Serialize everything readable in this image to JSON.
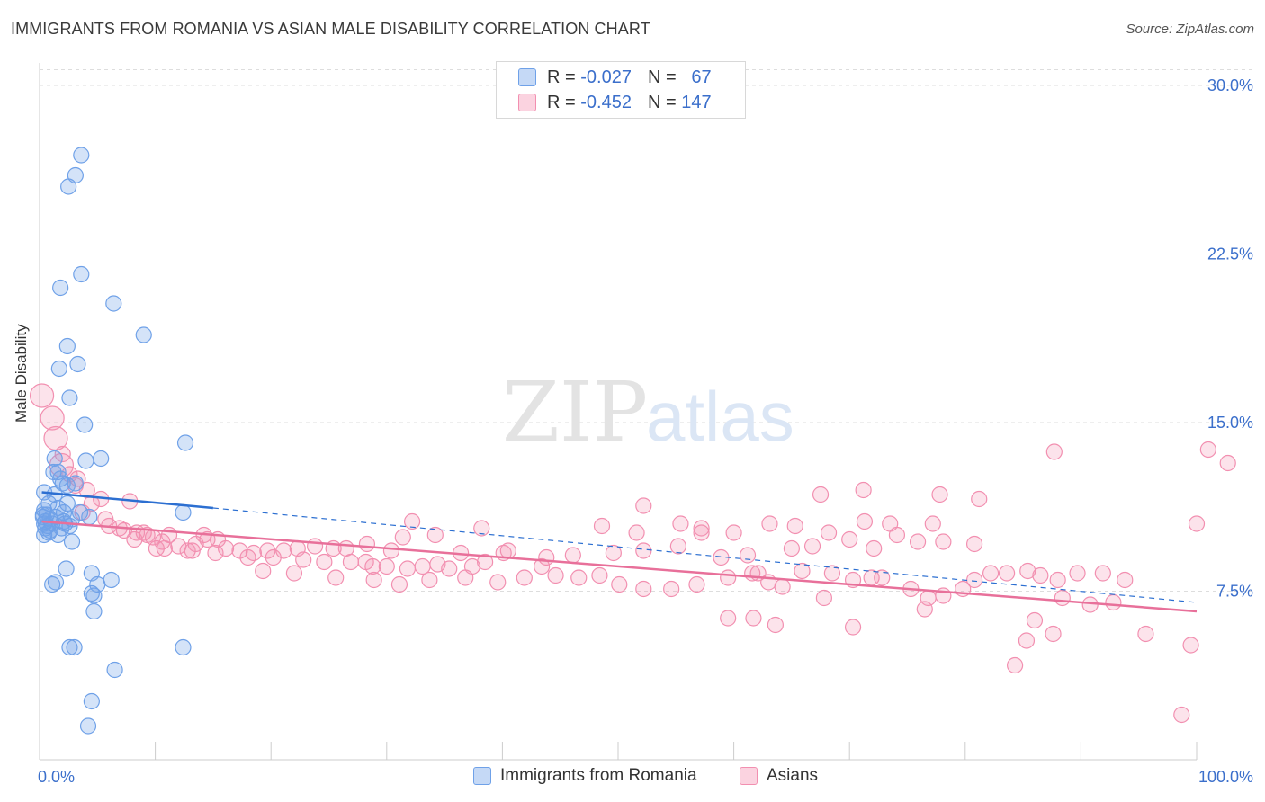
{
  "title": "IMMIGRANTS FROM ROMANIA VS ASIAN MALE DISABILITY CORRELATION CHART",
  "source": "Source: ZipAtlas.com",
  "watermark": {
    "zip": "ZIP",
    "atlas": "atlas"
  },
  "legend_top": [
    {
      "r_label": "R =",
      "r_value": "-0.027",
      "n_label": "N =",
      "n_value": "67"
    },
    {
      "r_label": "R =",
      "r_value": "-0.452",
      "n_label": "N =",
      "n_value": "147"
    }
  ],
  "legend_bottom": [
    "Immigrants from Romania",
    "Asians"
  ],
  "colors": {
    "blue": "#6fa1e8",
    "blue_line": "#2c6fd1",
    "pink": "#f28fb0",
    "pink_line": "#e8709a",
    "tick_text": "#3b6fcb"
  },
  "chart_data": {
    "type": "scatter",
    "ylabel": "Male Disability",
    "xlim": [
      0,
      100
    ],
    "ylim": [
      0,
      31
    ],
    "x_tick_labels": [
      "0.0%",
      "100.0%"
    ],
    "y_ticks": [
      {
        "value": 7.5,
        "label": "7.5%"
      },
      {
        "value": 15.0,
        "label": "15.0%"
      },
      {
        "value": 22.5,
        "label": "22.5%"
      },
      {
        "value": 30.0,
        "label": "30.0%"
      }
    ],
    "grid": "horizontal dashed",
    "series": [
      {
        "name": "Immigrants from Romania",
        "color": "#6fa1e8",
        "trend_solid": [
          [
            0.2,
            11.9
          ],
          [
            15,
            11.2
          ]
        ],
        "trend_dashed": [
          [
            15,
            11.2
          ],
          [
            100,
            7.0
          ]
        ],
        "points": [
          [
            3.6,
            26.9
          ],
          [
            3.1,
            26.0
          ],
          [
            2.5,
            25.5
          ],
          [
            3.6,
            21.6
          ],
          [
            1.8,
            21.0
          ],
          [
            6.4,
            20.3
          ],
          [
            9.0,
            18.9
          ],
          [
            2.4,
            18.4
          ],
          [
            3.3,
            17.6
          ],
          [
            1.7,
            17.4
          ],
          [
            2.6,
            16.1
          ],
          [
            3.9,
            14.9
          ],
          [
            12.6,
            14.1
          ],
          [
            1.3,
            13.4
          ],
          [
            4.0,
            13.3
          ],
          [
            5.3,
            13.4
          ],
          [
            1.2,
            12.8
          ],
          [
            1.6,
            12.8
          ],
          [
            1.8,
            12.5
          ],
          [
            2.0,
            12.3
          ],
          [
            2.4,
            12.2
          ],
          [
            3.1,
            12.3
          ],
          [
            0.4,
            11.9
          ],
          [
            1.3,
            11.8
          ],
          [
            2.4,
            11.4
          ],
          [
            0.8,
            11.4
          ],
          [
            0.4,
            11.1
          ],
          [
            1.6,
            11.2
          ],
          [
            0.6,
            10.9
          ],
          [
            2.1,
            11.0
          ],
          [
            3.5,
            11.0
          ],
          [
            12.4,
            11.0
          ],
          [
            0.3,
            10.8
          ],
          [
            0.5,
            10.6
          ],
          [
            0.9,
            10.7
          ],
          [
            1.4,
            10.8
          ],
          [
            2.1,
            10.6
          ],
          [
            2.8,
            10.7
          ],
          [
            4.3,
            10.8
          ],
          [
            0.4,
            10.5
          ],
          [
            0.7,
            10.4
          ],
          [
            1.1,
            10.5
          ],
          [
            2.2,
            10.5
          ],
          [
            2.6,
            10.4
          ],
          [
            0.5,
            10.3
          ],
          [
            0.9,
            10.2
          ],
          [
            0.4,
            10.0
          ],
          [
            0.8,
            10.1
          ],
          [
            1.6,
            10.0
          ],
          [
            2.8,
            9.7
          ],
          [
            2.3,
            8.5
          ],
          [
            4.5,
            8.3
          ],
          [
            6.2,
            8.0
          ],
          [
            1.4,
            7.9
          ],
          [
            1.1,
            7.8
          ],
          [
            5.0,
            7.8
          ],
          [
            4.5,
            7.4
          ],
          [
            4.7,
            7.3
          ],
          [
            4.7,
            6.6
          ],
          [
            2.6,
            5.0
          ],
          [
            3.0,
            5.0
          ],
          [
            12.4,
            5.0
          ],
          [
            6.5,
            4.0
          ],
          [
            4.5,
            2.6
          ],
          [
            4.2,
            1.5
          ],
          [
            0.3,
            10.9
          ],
          [
            1.9,
            10.3
          ]
        ]
      },
      {
        "name": "Asians",
        "color": "#f28fb0",
        "trend": [
          [
            0.2,
            10.6
          ],
          [
            100,
            6.6
          ]
        ],
        "points": [
          [
            0.2,
            16.2
          ],
          [
            1.1,
            15.2
          ],
          [
            1.4,
            14.3
          ],
          [
            2.0,
            13.6
          ],
          [
            1.9,
            13.1
          ],
          [
            2.6,
            12.7
          ],
          [
            3.3,
            12.5
          ],
          [
            3.1,
            12.2
          ],
          [
            4.1,
            12.0
          ],
          [
            5.3,
            11.6
          ],
          [
            4.5,
            11.4
          ],
          [
            7.8,
            11.5
          ],
          [
            3.7,
            11.0
          ],
          [
            5.7,
            10.7
          ],
          [
            6.0,
            10.4
          ],
          [
            6.9,
            10.3
          ],
          [
            7.3,
            10.2
          ],
          [
            8.4,
            10.1
          ],
          [
            9.0,
            10.1
          ],
          [
            9.3,
            10.0
          ],
          [
            11.2,
            10.0
          ],
          [
            8.2,
            9.8
          ],
          [
            9.8,
            9.9
          ],
          [
            10.6,
            9.7
          ],
          [
            12.0,
            9.5
          ],
          [
            13.5,
            9.6
          ],
          [
            14.5,
            9.8
          ],
          [
            15.4,
            9.8
          ],
          [
            14.2,
            10.0
          ],
          [
            10.1,
            9.4
          ],
          [
            10.8,
            9.4
          ],
          [
            12.8,
            9.3
          ],
          [
            13.2,
            9.3
          ],
          [
            15.2,
            9.2
          ],
          [
            16.1,
            9.4
          ],
          [
            17.3,
            9.3
          ],
          [
            18.5,
            9.2
          ],
          [
            19.7,
            9.3
          ],
          [
            21.1,
            9.3
          ],
          [
            22.3,
            9.4
          ],
          [
            23.8,
            9.5
          ],
          [
            25.4,
            9.4
          ],
          [
            26.5,
            9.4
          ],
          [
            18.0,
            9.0
          ],
          [
            20.2,
            9.0
          ],
          [
            22.8,
            8.9
          ],
          [
            24.6,
            8.8
          ],
          [
            26.9,
            8.8
          ],
          [
            28.2,
            8.8
          ],
          [
            28.8,
            8.6
          ],
          [
            30.0,
            8.6
          ],
          [
            31.8,
            8.5
          ],
          [
            33.1,
            8.6
          ],
          [
            34.4,
            8.7
          ],
          [
            35.4,
            8.5
          ],
          [
            37.4,
            8.6
          ],
          [
            38.5,
            8.8
          ],
          [
            30.4,
            9.3
          ],
          [
            28.3,
            9.6
          ],
          [
            31.4,
            9.9
          ],
          [
            36.4,
            9.2
          ],
          [
            40.1,
            9.2
          ],
          [
            43.4,
            8.6
          ],
          [
            19.3,
            8.4
          ],
          [
            22.0,
            8.3
          ],
          [
            25.6,
            8.1
          ],
          [
            28.9,
            8.0
          ],
          [
            31.1,
            7.8
          ],
          [
            33.7,
            8.0
          ],
          [
            36.8,
            8.1
          ],
          [
            39.6,
            7.9
          ],
          [
            41.9,
            8.1
          ],
          [
            44.6,
            8.2
          ],
          [
            46.6,
            8.1
          ],
          [
            48.4,
            8.2
          ],
          [
            50.1,
            7.8
          ],
          [
            52.2,
            7.6
          ],
          [
            54.6,
            7.6
          ],
          [
            56.8,
            7.8
          ],
          [
            59.5,
            8.1
          ],
          [
            61.6,
            8.3
          ],
          [
            63.0,
            7.9
          ],
          [
            64.2,
            7.7
          ],
          [
            62.1,
            8.3
          ],
          [
            65.9,
            8.4
          ],
          [
            68.5,
            8.3
          ],
          [
            70.3,
            8.0
          ],
          [
            71.9,
            8.1
          ],
          [
            72.8,
            8.1
          ],
          [
            75.3,
            7.6
          ],
          [
            76.8,
            7.2
          ],
          [
            78.1,
            7.3
          ],
          [
            79.8,
            7.6
          ],
          [
            80.8,
            8.0
          ],
          [
            82.2,
            8.3
          ],
          [
            83.6,
            8.3
          ],
          [
            85.4,
            8.4
          ],
          [
            86.5,
            8.2
          ],
          [
            88.0,
            8.0
          ],
          [
            89.7,
            8.3
          ],
          [
            91.9,
            8.3
          ],
          [
            93.8,
            8.0
          ],
          [
            40.5,
            9.3
          ],
          [
            43.8,
            9.0
          ],
          [
            46.1,
            9.1
          ],
          [
            49.6,
            9.2
          ],
          [
            52.2,
            9.3
          ],
          [
            55.2,
            9.5
          ],
          [
            58.9,
            9.0
          ],
          [
            61.2,
            9.1
          ],
          [
            65.0,
            9.4
          ],
          [
            66.8,
            9.5
          ],
          [
            70.0,
            9.8
          ],
          [
            72.1,
            9.4
          ],
          [
            78.1,
            9.7
          ],
          [
            80.8,
            9.6
          ],
          [
            57.2,
            10.1
          ],
          [
            60.0,
            10.1
          ],
          [
            68.2,
            10.1
          ],
          [
            74.1,
            10.0
          ],
          [
            75.9,
            9.7
          ],
          [
            32.2,
            10.6
          ],
          [
            34.2,
            10.0
          ],
          [
            38.2,
            10.3
          ],
          [
            48.6,
            10.4
          ],
          [
            51.6,
            10.1
          ],
          [
            55.4,
            10.5
          ],
          [
            57.2,
            10.3
          ],
          [
            52.2,
            11.3
          ],
          [
            63.1,
            10.5
          ],
          [
            65.3,
            10.4
          ],
          [
            71.3,
            10.6
          ],
          [
            73.5,
            10.5
          ],
          [
            77.2,
            10.5
          ],
          [
            77.8,
            11.8
          ],
          [
            81.2,
            11.6
          ],
          [
            87.7,
            13.7
          ],
          [
            100.0,
            10.5
          ],
          [
            101.0,
            13.8
          ],
          [
            102.7,
            13.2
          ],
          [
            67.5,
            11.8
          ],
          [
            71.2,
            12.0
          ],
          [
            67.8,
            7.2
          ],
          [
            59.5,
            6.3
          ],
          [
            61.7,
            6.3
          ],
          [
            63.6,
            6.0
          ],
          [
            70.3,
            5.9
          ],
          [
            85.3,
            5.3
          ],
          [
            87.6,
            5.6
          ],
          [
            90.8,
            6.9
          ],
          [
            92.8,
            7.0
          ],
          [
            95.6,
            5.6
          ],
          [
            99.5,
            5.1
          ],
          [
            98.7,
            2.0
          ],
          [
            84.3,
            4.2
          ],
          [
            76.5,
            6.7
          ],
          [
            86.0,
            6.2
          ],
          [
            88.4,
            7.2
          ]
        ]
      }
    ]
  }
}
